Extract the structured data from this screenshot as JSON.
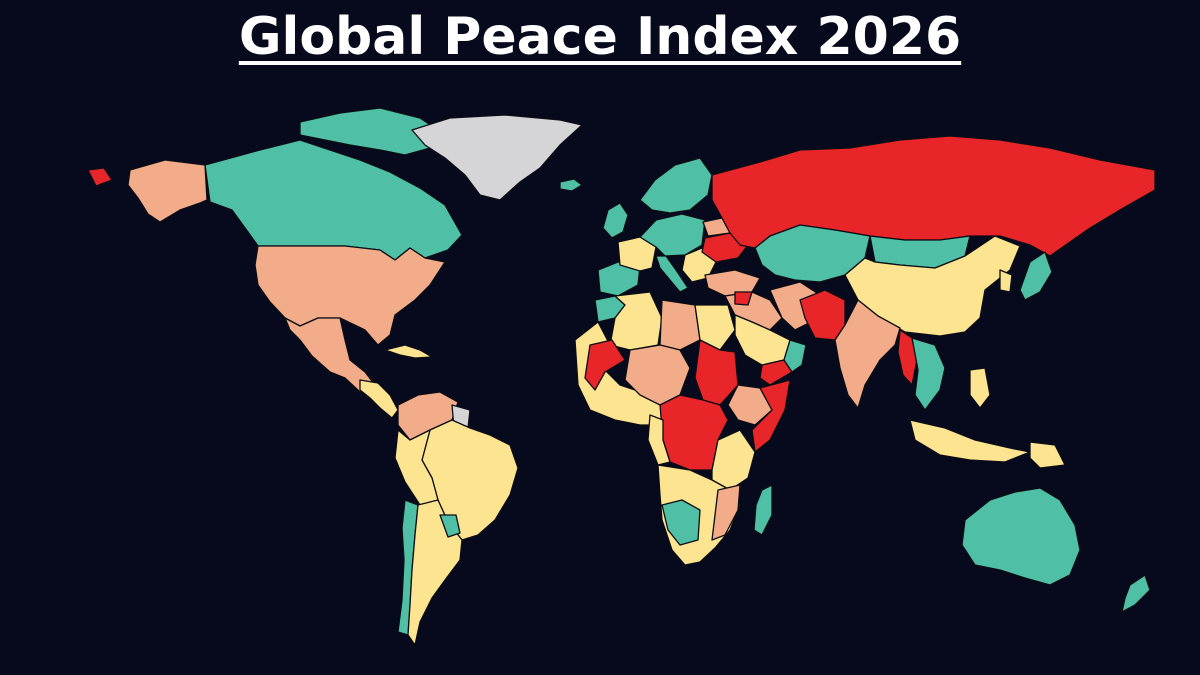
{
  "title": "Global Peace Index 2026",
  "colors": {
    "background": "#070a1d",
    "very_high_peace": "#4fbfa5",
    "high_peace": "#fde490",
    "medium_peace": "#f3ac8a",
    "low_peace": "#e8262a",
    "no_data": "#d5d5d8"
  },
  "regions": [
    {
      "name": "Alaska",
      "level": "medium_peace"
    },
    {
      "name": "Alaska-tip",
      "level": "low_peace"
    },
    {
      "name": "Canada",
      "level": "very_high_peace"
    },
    {
      "name": "Arctic-islands",
      "level": "very_high_peace"
    },
    {
      "name": "Greenland",
      "level": "no_data"
    },
    {
      "name": "Iceland",
      "level": "very_high_peace"
    },
    {
      "name": "United-States",
      "level": "medium_peace"
    },
    {
      "name": "Mexico",
      "level": "medium_peace"
    },
    {
      "name": "Central-America",
      "level": "high_peace"
    },
    {
      "name": "Cuba",
      "level": "high_peace"
    },
    {
      "name": "Colombia-Venezuela",
      "level": "medium_peace"
    },
    {
      "name": "Guianas",
      "level": "no_data"
    },
    {
      "name": "Brazil",
      "level": "high_peace"
    },
    {
      "name": "Peru-Bolivia",
      "level": "high_peace"
    },
    {
      "name": "Chile",
      "level": "very_high_peace"
    },
    {
      "name": "Argentina",
      "level": "high_peace"
    },
    {
      "name": "Uruguay-Paraguay",
      "level": "very_high_peace"
    },
    {
      "name": "Ireland-UK",
      "level": "very_high_peace"
    },
    {
      "name": "Iberia",
      "level": "very_high_peace"
    },
    {
      "name": "France",
      "level": "high_peace"
    },
    {
      "name": "Central-Europe",
      "level": "very_high_peace"
    },
    {
      "name": "Scandinavia",
      "level": "very_high_peace"
    },
    {
      "name": "Italy",
      "level": "very_high_peace"
    },
    {
      "name": "Balkans",
      "level": "high_peace"
    },
    {
      "name": "Ukraine",
      "level": "low_peace"
    },
    {
      "name": "Belarus",
      "level": "medium_peace"
    },
    {
      "name": "Turkey",
      "level": "medium_peace"
    },
    {
      "name": "Russia",
      "level": "low_peace"
    },
    {
      "name": "Kazakhstan-Central-Asia",
      "level": "very_high_peace"
    },
    {
      "name": "Mongolia",
      "level": "very_high_peace"
    },
    {
      "name": "China",
      "level": "high_peace"
    },
    {
      "name": "Korea",
      "level": "high_peace"
    },
    {
      "name": "Japan",
      "level": "very_high_peace"
    },
    {
      "name": "Middle-East",
      "level": "medium_peace"
    },
    {
      "name": "Syria",
      "level": "low_peace"
    },
    {
      "name": "Saudi-Arabia",
      "level": "high_peace"
    },
    {
      "name": "Yemen",
      "level": "low_peace"
    },
    {
      "name": "Oman",
      "level": "very_high_peace"
    },
    {
      "name": "Iran",
      "level": "medium_peace"
    },
    {
      "name": "Afghanistan-Pakistan",
      "level": "low_peace"
    },
    {
      "name": "India",
      "level": "medium_peace"
    },
    {
      "name": "Myanmar",
      "level": "low_peace"
    },
    {
      "name": "Southeast-Asia",
      "level": "very_high_peace"
    },
    {
      "name": "Philippines",
      "level": "high_peace"
    },
    {
      "name": "Indonesia",
      "level": "high_peace"
    },
    {
      "name": "Papua",
      "level": "high_peace"
    },
    {
      "name": "Australia",
      "level": "very_high_peace"
    },
    {
      "name": "New-Zealand",
      "level": "very_high_peace"
    },
    {
      "name": "Morocco",
      "level": "very_high_peace"
    },
    {
      "name": "Algeria",
      "level": "high_peace"
    },
    {
      "name": "Libya",
      "level": "medium_peace"
    },
    {
      "name": "Egypt",
      "level": "high_peace"
    },
    {
      "name": "West-Africa",
      "level": "high_peace"
    },
    {
      "name": "Mali",
      "level": "low_peace"
    },
    {
      "name": "Niger-Chad",
      "level": "medium_peace"
    },
    {
      "name": "Sudan",
      "level": "low_peace"
    },
    {
      "name": "Ethiopia",
      "level": "medium_peace"
    },
    {
      "name": "Somalia",
      "level": "low_peace"
    },
    {
      "name": "Central-Africa",
      "level": "low_peace"
    },
    {
      "name": "Gabon-Congo",
      "level": "high_peace"
    },
    {
      "name": "East-Africa",
      "level": "high_peace"
    },
    {
      "name": "Southern-Africa",
      "level": "high_peace"
    },
    {
      "name": "Namibia-Botswana",
      "level": "very_high_peace"
    },
    {
      "name": "Mozambique",
      "level": "medium_peace"
    },
    {
      "name": "Madagascar",
      "level": "very_high_peace"
    }
  ]
}
